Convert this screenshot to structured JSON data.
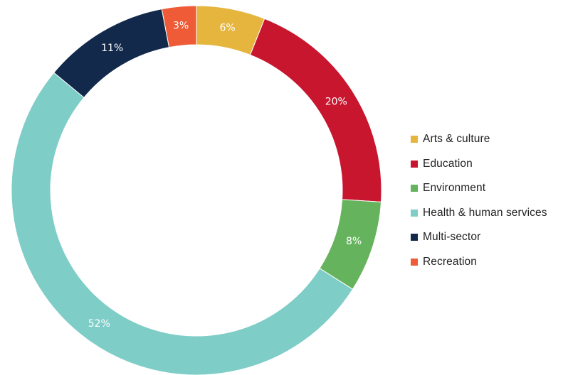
{
  "chart_data": {
    "type": "pie",
    "donut": true,
    "title": "",
    "categories": [
      "Arts & culture",
      "Education",
      "Environment",
      "Health & human services",
      "Multi-sector",
      "Recreation"
    ],
    "values": [
      6,
      20,
      8,
      52,
      11,
      3
    ],
    "value_labels": [
      "6%",
      "20%",
      "8%",
      "52%",
      "11%",
      "3%"
    ],
    "colors": [
      "#E5B53D",
      "#C8162F",
      "#66B35D",
      "#7ECDC7",
      "#13294B",
      "#EE5B36"
    ],
    "legend_position": "right",
    "slice_order": [
      0,
      1,
      2,
      3,
      4,
      5
    ],
    "start": "top, clockwise"
  }
}
